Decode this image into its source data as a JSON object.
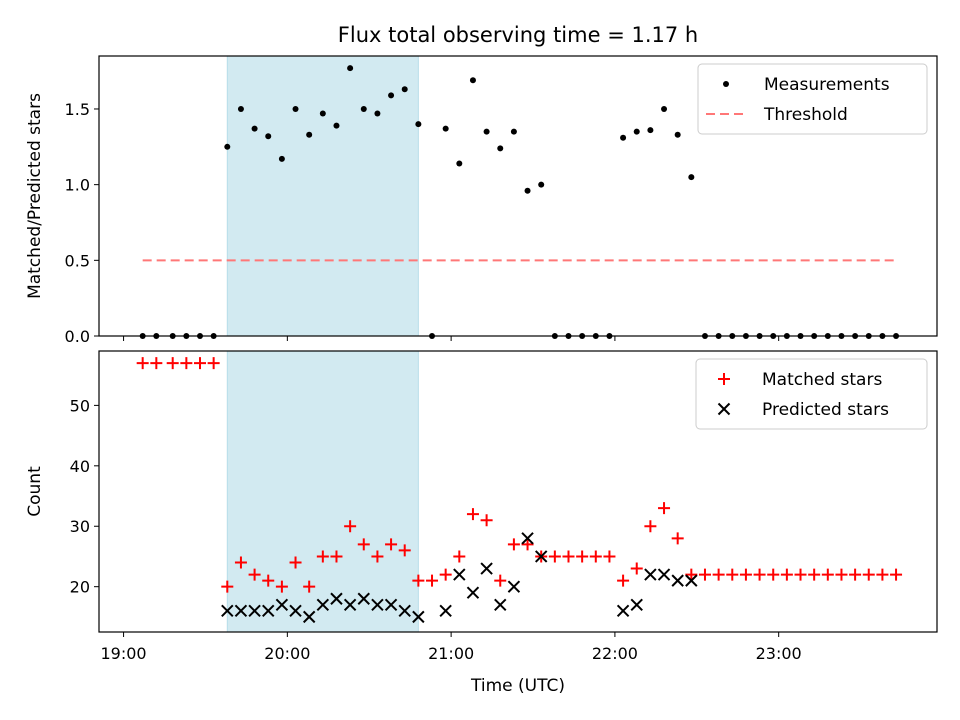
{
  "chart_data": [
    {
      "type": "scatter",
      "title": "Flux total observing time = 1.17 h",
      "xlabel": "",
      "ylabel": "Matched/Predicted stars",
      "xlim": [
        "18:51",
        "23:58"
      ],
      "ylim": [
        0,
        1.85
      ],
      "yticks": [
        0.0,
        0.5,
        1.0,
        1.5
      ],
      "ytick_labels": [
        "0.0",
        "0.5",
        "1.0",
        "1.5"
      ],
      "legend_position": "top-right",
      "shaded_region": {
        "start": "19:38",
        "end": "20:48",
        "color": "#add8e6"
      },
      "series": [
        {
          "name": "Measurements",
          "marker": "dot",
          "color": "#000000",
          "points": [
            [
              "19:07",
              0
            ],
            [
              "19:12",
              0
            ],
            [
              "19:18",
              0
            ],
            [
              "19:23",
              0
            ],
            [
              "19:28",
              0
            ],
            [
              "19:33",
              0
            ],
            [
              "19:38",
              1.25
            ],
            [
              "19:43",
              1.5
            ],
            [
              "19:48",
              1.37
            ],
            [
              "19:53",
              1.32
            ],
            [
              "19:58",
              1.17
            ],
            [
              "20:03",
              1.5
            ],
            [
              "20:08",
              1.33
            ],
            [
              "20:13",
              1.47
            ],
            [
              "20:18",
              1.39
            ],
            [
              "20:23",
              1.77
            ],
            [
              "20:28",
              1.5
            ],
            [
              "20:33",
              1.47
            ],
            [
              "20:38",
              1.59
            ],
            [
              "20:43",
              1.63
            ],
            [
              "20:48",
              1.4
            ],
            [
              "20:53",
              0
            ],
            [
              "20:58",
              1.37
            ],
            [
              "21:03",
              1.14
            ],
            [
              "21:08",
              1.69
            ],
            [
              "21:13",
              1.35
            ],
            [
              "21:18",
              1.24
            ],
            [
              "21:23",
              1.35
            ],
            [
              "21:28",
              0.96
            ],
            [
              "21:33",
              1.0
            ],
            [
              "21:38",
              0
            ],
            [
              "21:43",
              0
            ],
            [
              "21:48",
              0
            ],
            [
              "21:53",
              0
            ],
            [
              "21:58",
              0
            ],
            [
              "22:03",
              1.31
            ],
            [
              "22:08",
              1.35
            ],
            [
              "22:13",
              1.36
            ],
            [
              "22:18",
              1.5
            ],
            [
              "22:23",
              1.33
            ],
            [
              "22:28",
              1.05
            ],
            [
              "22:33",
              0
            ],
            [
              "22:38",
              0
            ],
            [
              "22:43",
              0
            ],
            [
              "22:48",
              0
            ],
            [
              "22:53",
              0
            ],
            [
              "22:58",
              0
            ],
            [
              "23:03",
              0
            ],
            [
              "23:08",
              0
            ],
            [
              "23:13",
              0
            ],
            [
              "23:18",
              0
            ],
            [
              "23:23",
              0
            ],
            [
              "23:28",
              0
            ],
            [
              "23:33",
              0
            ],
            [
              "23:38",
              0
            ],
            [
              "23:43",
              0
            ]
          ]
        },
        {
          "name": "Threshold",
          "marker": "dashed-line",
          "color": "#ff7777",
          "points": [
            [
              "19:07",
              0.5
            ],
            [
              "23:43",
              0.5
            ]
          ]
        }
      ]
    },
    {
      "type": "scatter",
      "title": "",
      "xlabel": "Time (UTC)",
      "ylabel": "Count",
      "xlim": [
        "18:51",
        "23:58"
      ],
      "ylim": [
        12.5,
        59
      ],
      "yticks": [
        20,
        30,
        40,
        50
      ],
      "ytick_labels": [
        "20",
        "30",
        "40",
        "50"
      ],
      "xticks": [
        "19:00",
        "20:00",
        "21:00",
        "22:00",
        "23:00"
      ],
      "xtick_labels": [
        "19:00",
        "20:00",
        "21:00",
        "22:00",
        "23:00"
      ],
      "legend_position": "top-right",
      "shaded_region": {
        "start": "19:38",
        "end": "20:48",
        "color": "#add8e6"
      },
      "series": [
        {
          "name": "Matched stars",
          "marker": "plus",
          "color": "#ff0000",
          "points": [
            [
              "19:07",
              57
            ],
            [
              "19:12",
              57
            ],
            [
              "19:18",
              57
            ],
            [
              "19:23",
              57
            ],
            [
              "19:28",
              57
            ],
            [
              "19:33",
              57
            ],
            [
              "19:38",
              20
            ],
            [
              "19:43",
              24
            ],
            [
              "19:48",
              22
            ],
            [
              "19:53",
              21
            ],
            [
              "19:58",
              20
            ],
            [
              "20:03",
              24
            ],
            [
              "20:08",
              20
            ],
            [
              "20:13",
              25
            ],
            [
              "20:18",
              25
            ],
            [
              "20:23",
              30
            ],
            [
              "20:28",
              27
            ],
            [
              "20:33",
              25
            ],
            [
              "20:38",
              27
            ],
            [
              "20:43",
              26
            ],
            [
              "20:48",
              21
            ],
            [
              "20:53",
              21
            ],
            [
              "20:58",
              22
            ],
            [
              "21:03",
              25
            ],
            [
              "21:08",
              32
            ],
            [
              "21:13",
              31
            ],
            [
              "21:18",
              21
            ],
            [
              "21:23",
              27
            ],
            [
              "21:28",
              27
            ],
            [
              "21:33",
              25
            ],
            [
              "21:38",
              25
            ],
            [
              "21:43",
              25
            ],
            [
              "21:48",
              25
            ],
            [
              "21:53",
              25
            ],
            [
              "21:58",
              25
            ],
            [
              "22:03",
              21
            ],
            [
              "22:08",
              23
            ],
            [
              "22:13",
              30
            ],
            [
              "22:18",
              33
            ],
            [
              "22:23",
              28
            ],
            [
              "22:28",
              22
            ],
            [
              "22:33",
              22
            ],
            [
              "22:38",
              22
            ],
            [
              "22:43",
              22
            ],
            [
              "22:48",
              22
            ],
            [
              "22:53",
              22
            ],
            [
              "22:58",
              22
            ],
            [
              "23:03",
              22
            ],
            [
              "23:08",
              22
            ],
            [
              "23:13",
              22
            ],
            [
              "23:18",
              22
            ],
            [
              "23:23",
              22
            ],
            [
              "23:28",
              22
            ],
            [
              "23:33",
              22
            ],
            [
              "23:38",
              22
            ],
            [
              "23:43",
              22
            ]
          ]
        },
        {
          "name": "Predicted stars",
          "marker": "x",
          "color": "#000000",
          "points": [
            [
              "19:38",
              16
            ],
            [
              "19:43",
              16
            ],
            [
              "19:48",
              16
            ],
            [
              "19:53",
              16
            ],
            [
              "19:58",
              17
            ],
            [
              "20:03",
              16
            ],
            [
              "20:08",
              15
            ],
            [
              "20:13",
              17
            ],
            [
              "20:18",
              18
            ],
            [
              "20:23",
              17
            ],
            [
              "20:28",
              18
            ],
            [
              "20:33",
              17
            ],
            [
              "20:38",
              17
            ],
            [
              "20:43",
              16
            ],
            [
              "20:48",
              15
            ],
            [
              "20:58",
              16
            ],
            [
              "21:03",
              22
            ],
            [
              "21:08",
              19
            ],
            [
              "21:13",
              23
            ],
            [
              "21:18",
              17
            ],
            [
              "21:23",
              20
            ],
            [
              "21:28",
              28
            ],
            [
              "21:33",
              25
            ],
            [
              "22:03",
              16
            ],
            [
              "22:08",
              17
            ],
            [
              "22:13",
              22
            ],
            [
              "22:18",
              22
            ],
            [
              "22:23",
              21
            ],
            [
              "22:28",
              21
            ]
          ]
        }
      ]
    }
  ]
}
